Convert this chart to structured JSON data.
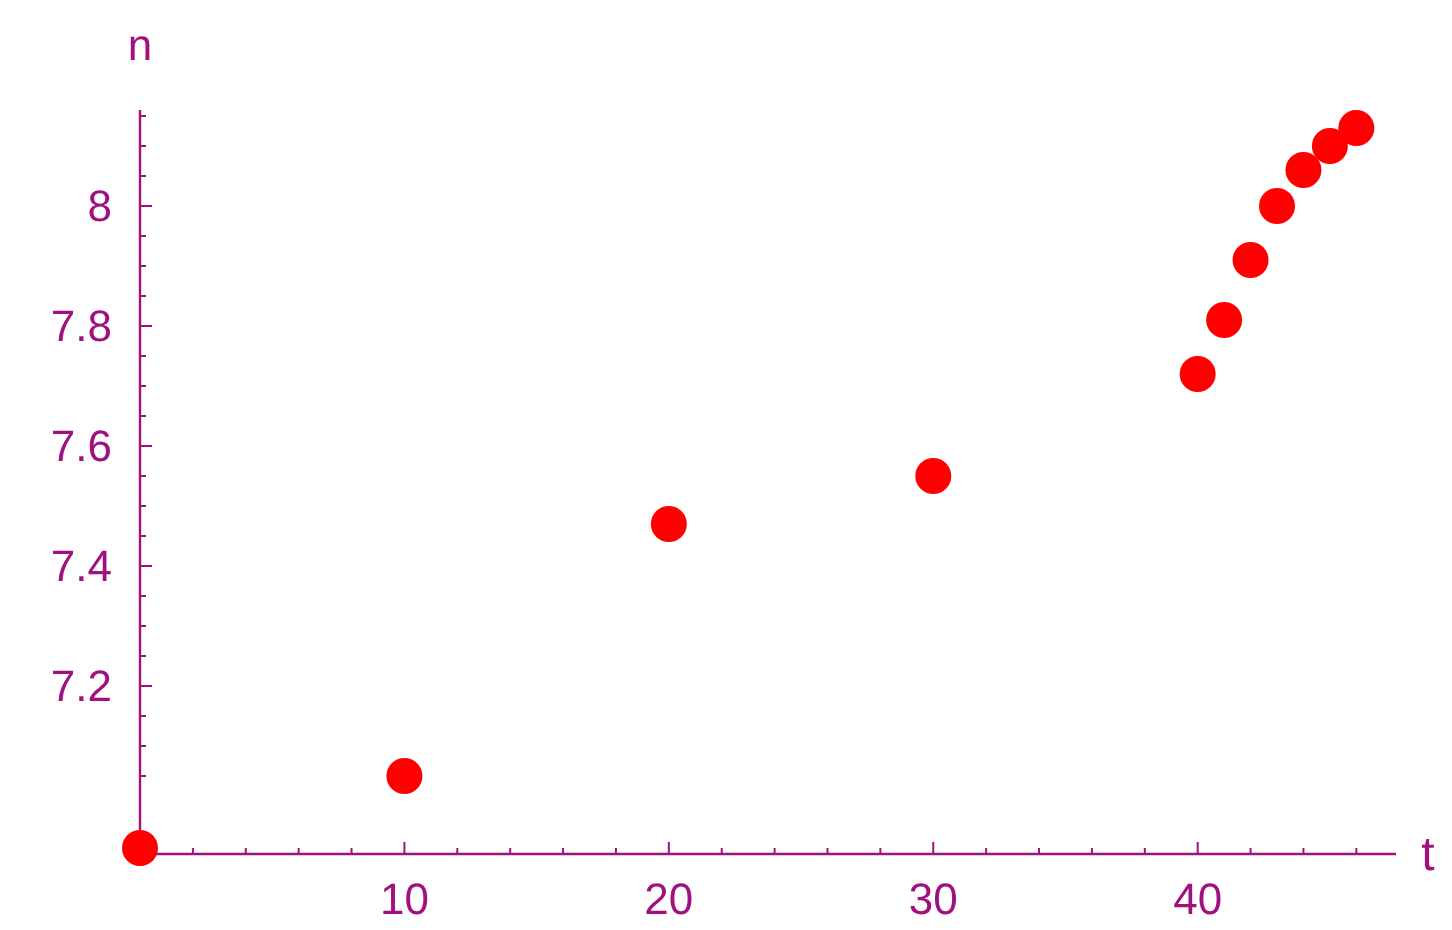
{
  "chart_data": {
    "type": "scatter",
    "xlabel": "t",
    "ylabel": "n",
    "x": [
      0,
      10,
      20,
      30,
      40,
      41,
      42,
      43,
      44,
      45,
      46
    ],
    "series": [
      {
        "color": "#ff0000",
        "values": [
          6.93,
          7.05,
          7.47,
          7.55,
          7.72,
          7.81,
          7.91,
          8.0,
          8.06,
          8.1,
          8.13
        ]
      }
    ],
    "marker": "circle",
    "xlim": [
      0,
      47.5
    ],
    "ylim": [
      6.92,
      8.16
    ],
    "xticks": [
      {
        "value": 2,
        "label": null
      },
      {
        "value": 4,
        "label": null
      },
      {
        "value": 6,
        "label": null
      },
      {
        "value": 8,
        "label": null
      },
      10,
      {
        "value": 12,
        "label": null
      },
      {
        "value": 14,
        "label": null
      },
      {
        "value": 16,
        "label": null
      },
      {
        "value": 18,
        "label": null
      },
      20,
      {
        "value": 22,
        "label": null
      },
      {
        "value": 24,
        "label": null
      },
      {
        "value": 26,
        "label": null
      },
      {
        "value": 28,
        "label": null
      },
      30,
      {
        "value": 32,
        "label": null
      },
      {
        "value": 34,
        "label": null
      },
      {
        "value": 36,
        "label": null
      },
      {
        "value": 38,
        "label": null
      },
      40,
      {
        "value": 42,
        "label": null
      },
      {
        "value": 44,
        "label": null
      },
      {
        "value": 46,
        "label": null
      }
    ],
    "yticks": [
      {
        "value": 7.05,
        "label": null
      },
      {
        "value": 7.1,
        "label": null
      },
      {
        "value": 7.15,
        "label": null
      },
      7.2,
      {
        "value": 7.25,
        "label": null
      },
      {
        "value": 7.3,
        "label": null
      },
      {
        "value": 7.35,
        "label": null
      },
      7.4,
      {
        "value": 7.45,
        "label": null
      },
      {
        "value": 7.5,
        "label": null
      },
      {
        "value": 7.55,
        "label": null
      },
      7.6,
      {
        "value": 7.65,
        "label": null
      },
      {
        "value": 7.7,
        "label": null
      },
      {
        "value": 7.75,
        "label": null
      },
      7.8,
      {
        "value": 7.85,
        "label": null
      },
      {
        "value": 7.9,
        "label": null
      },
      {
        "value": 7.95,
        "label": null
      },
      8,
      {
        "value": 8.05,
        "label": null
      },
      {
        "value": 8.1,
        "label": null
      },
      {
        "value": 8.15,
        "label": null
      }
    ],
    "tick_labels": "xy"
  }
}
